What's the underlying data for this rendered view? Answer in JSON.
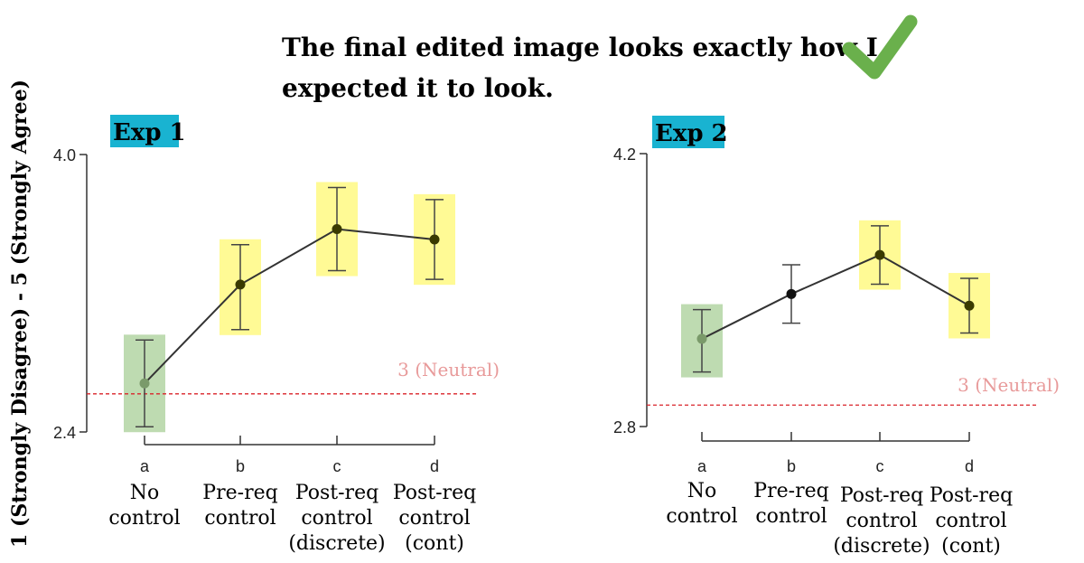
{
  "headline": {
    "line1": "The final edited image looks exactly how I",
    "line2": "expected it to look.",
    "check_icon": "checkmark-icon",
    "check_color": "#6ab04c"
  },
  "shared_ylabel": "1 (Strongly Disagree) - 5 (Strongly Agree)",
  "colors": {
    "tag_bg": "#19b3d1",
    "highlight_green": "#b7d7a8",
    "highlight_yellow": "#fffa8a",
    "neutral_line": "#d9232a",
    "neutral_text": "#e89a9a",
    "line": "#333333"
  },
  "chart_data": [
    {
      "type": "line",
      "title": "Exp 1",
      "ylim": [
        2.4,
        4.0
      ],
      "ytick_labels": [
        "4.0",
        "2.4"
      ],
      "ytick_values": [
        4.0,
        2.4
      ],
      "neutral": {
        "value": 2.62,
        "label": "3 (Neutral)"
      },
      "categories": [
        {
          "letter": "a",
          "label": [
            "No",
            "control"
          ]
        },
        {
          "letter": "b",
          "label": [
            "Pre-req",
            "control"
          ]
        },
        {
          "letter": "c",
          "label": [
            "Post-req",
            "control",
            "(discrete)"
          ]
        },
        {
          "letter": "d",
          "label": [
            "Post-req",
            "control",
            "(cont)"
          ]
        }
      ],
      "values": [
        2.68,
        3.25,
        3.57,
        3.51
      ],
      "error_low": [
        2.43,
        2.99,
        3.33,
        3.28
      ],
      "error_high": [
        2.93,
        3.48,
        3.81,
        3.74
      ],
      "highlight": [
        "green",
        "yellow",
        "yellow",
        "yellow"
      ]
    },
    {
      "type": "line",
      "title": "Exp 2",
      "ylim": [
        2.8,
        4.2
      ],
      "ytick_labels": [
        "4.2",
        "2.8"
      ],
      "ytick_values": [
        4.2,
        2.8
      ],
      "neutral": {
        "value": 2.91,
        "label": "3 (Neutral)"
      },
      "categories": [
        {
          "letter": "a",
          "label": [
            "No",
            "control"
          ]
        },
        {
          "letter": "b",
          "label": [
            "Pre-req",
            "control"
          ]
        },
        {
          "letter": "c",
          "label": [
            "Post-req",
            "control",
            "(discrete)"
          ]
        },
        {
          "letter": "d",
          "label": [
            "Post-req",
            "control",
            "(cont)"
          ]
        }
      ],
      "values": [
        3.25,
        3.48,
        3.68,
        3.42
      ],
      "error_low": [
        3.08,
        3.33,
        3.53,
        3.28
      ],
      "error_high": [
        3.4,
        3.63,
        3.83,
        3.56
      ],
      "highlight": [
        "green",
        "none",
        "yellow",
        "yellow"
      ]
    }
  ]
}
